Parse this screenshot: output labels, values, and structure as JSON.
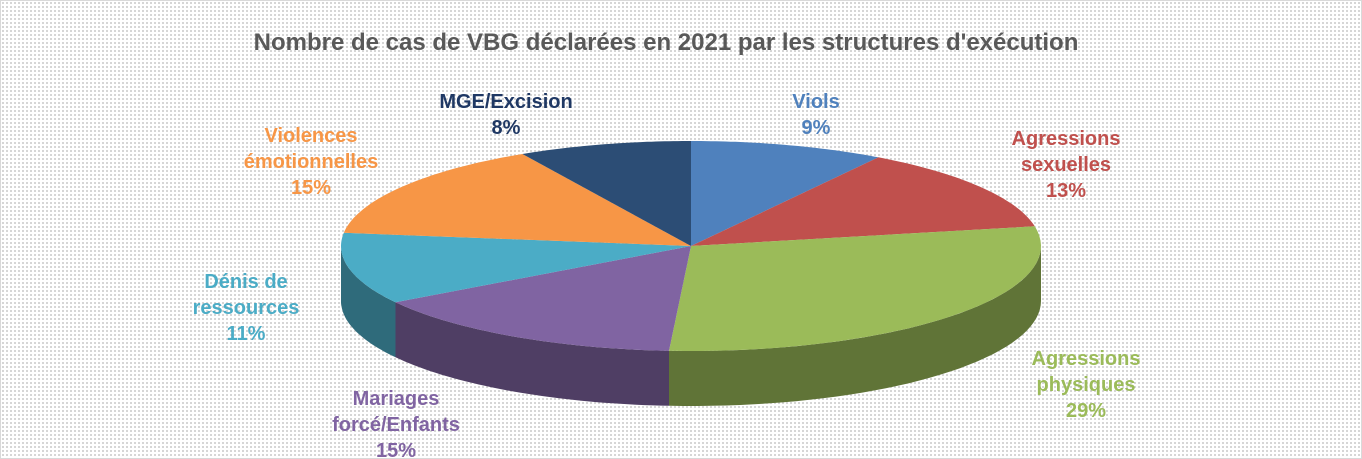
{
  "chart_data": {
    "type": "pie3d",
    "title": "Nombre de cas de VBG déclarées en 2021 par les structures d'exécution",
    "categories": [
      "Viols",
      "Agressions sexuelles",
      "Agressions physiques",
      "Mariages forcé/Enfants",
      "Dénis de ressources",
      "Violences émotionnelles",
      "MGE/Excision"
    ],
    "values": [
      9,
      13,
      29,
      15,
      11,
      15,
      8
    ],
    "value_labels": [
      "9%",
      "13%",
      "29%",
      "15%",
      "11%",
      "15%",
      "8%"
    ],
    "colors": [
      "#4f81bd",
      "#c0504d",
      "#9bbb59",
      "#8064a2",
      "#4bacc6",
      "#f79646",
      "#2c4d75"
    ]
  }
}
